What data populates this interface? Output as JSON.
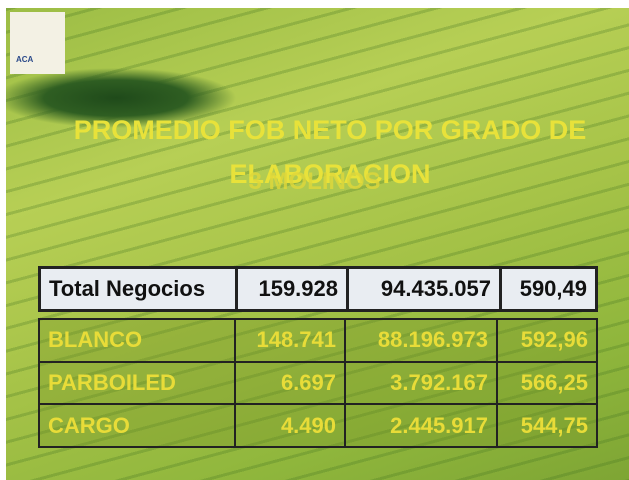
{
  "logo": {
    "text": "ACA"
  },
  "slide": {
    "title": "PROMEDIO FOB NETO POR GRADO DE ELABORACION",
    "subtitle": "3 MOLINOS"
  },
  "table": {
    "total": [
      "Total Negocios",
      "159.928",
      "94.435.057",
      "590,49"
    ],
    "rows": [
      [
        "BLANCO",
        "148.741",
        "88.196.973",
        "592,96"
      ],
      [
        "PARBOILED",
        "6.697",
        "3.792.167",
        "566,25"
      ],
      [
        "CARGO",
        "4.490",
        "2.445.917",
        "544,75"
      ]
    ]
  }
}
